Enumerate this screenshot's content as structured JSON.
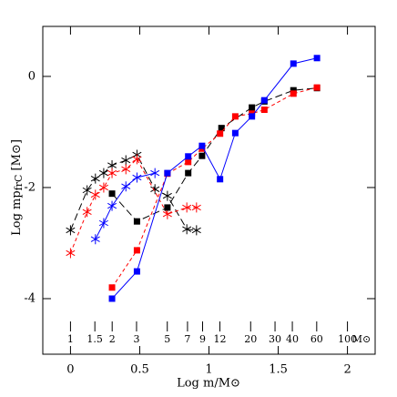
{
  "chart_data": {
    "type": "line",
    "x_label": "Log  m/M⊙",
    "y_label_main": "Log  mp",
    "y_label_sub": "frC",
    "y_label_unit": " [M⊙]",
    "xlim": [
      -0.2,
      2.2
    ],
    "ylim": [
      -5,
      0.9
    ],
    "xticks": [
      0,
      0.5,
      1,
      1.5,
      2
    ],
    "yticks": [
      -4,
      -2,
      0
    ],
    "mass_scale": {
      "unit": "M⊙",
      "ticks": [
        {
          "value": 0,
          "label": "1"
        },
        {
          "value": 0.176,
          "label": "1.5"
        },
        {
          "value": 0.301,
          "label": "2"
        },
        {
          "value": 0.477,
          "label": "3"
        },
        {
          "value": 0.699,
          "label": "5"
        },
        {
          "value": 0.845,
          "label": "7"
        },
        {
          "value": 0.954,
          "label": "9"
        },
        {
          "value": 1.079,
          "label": "12"
        },
        {
          "value": 1.301,
          "label": "20"
        },
        {
          "value": 1.477,
          "label": "30"
        },
        {
          "value": 1.602,
          "label": "40"
        },
        {
          "value": 1.778,
          "label": "60"
        },
        {
          "value": 2,
          "label": "100"
        }
      ]
    },
    "series": [
      {
        "color": "#000000",
        "marker": "asterisk",
        "dash": "long",
        "x": [
          0,
          0.12,
          0.18,
          0.24,
          0.3,
          0.4,
          0.48,
          0.61,
          0.7,
          0.84,
          0.91
        ],
        "values": [
          -2.77,
          -2.05,
          -1.84,
          -1.74,
          -1.6,
          -1.51,
          -1.41,
          -2.03,
          -2.15,
          -2.75,
          -2.77
        ]
      },
      {
        "color": "#ff0000",
        "marker": "asterisk",
        "dash": "short",
        "x": [
          0,
          0.12,
          0.18,
          0.24,
          0.3,
          0.4,
          0.48,
          0.7,
          0.84,
          0.91
        ],
        "values": [
          -3.18,
          -2.44,
          -2.13,
          -2.0,
          -1.74,
          -1.67,
          -1.49,
          -2.48,
          -2.36,
          -2.36
        ]
      },
      {
        "color": "#0000ff",
        "marker": "asterisk",
        "dash": "solid",
        "x": [
          0.18,
          0.24,
          0.3,
          0.4,
          0.48,
          0.61
        ],
        "values": [
          -2.93,
          -2.64,
          -2.33,
          -1.98,
          -1.82,
          -1.74
        ]
      },
      {
        "color": "#000000",
        "marker": "square",
        "dash": "long",
        "x": [
          0.3,
          0.48,
          0.7,
          0.85,
          0.95,
          1.09,
          1.31,
          1.4,
          1.61,
          1.78
        ],
        "values": [
          -2.11,
          -2.61,
          -2.36,
          -1.74,
          -1.43,
          -0.93,
          -0.56,
          -0.45,
          -0.25,
          -0.21
        ]
      },
      {
        "color": "#ff0000",
        "marker": "square",
        "dash": "short",
        "x": [
          0.3,
          0.48,
          0.7,
          0.85,
          0.95,
          1.08,
          1.19,
          1.31,
          1.4,
          1.61,
          1.78
        ],
        "values": [
          -3.8,
          -3.13,
          -1.75,
          -1.54,
          -1.3,
          -1.03,
          -0.72,
          -0.67,
          -0.6,
          -0.31,
          -0.2
        ]
      },
      {
        "color": "#0000ff",
        "marker": "square",
        "dash": "solid",
        "x": [
          0.3,
          0.48,
          0.7,
          0.85,
          0.95,
          1.08,
          1.19,
          1.31,
          1.4,
          1.61,
          1.78
        ],
        "values": [
          -4.0,
          -3.51,
          -1.74,
          -1.44,
          -1.25,
          -1.85,
          -1.02,
          -0.72,
          -0.43,
          0.23,
          0.33
        ]
      }
    ]
  }
}
